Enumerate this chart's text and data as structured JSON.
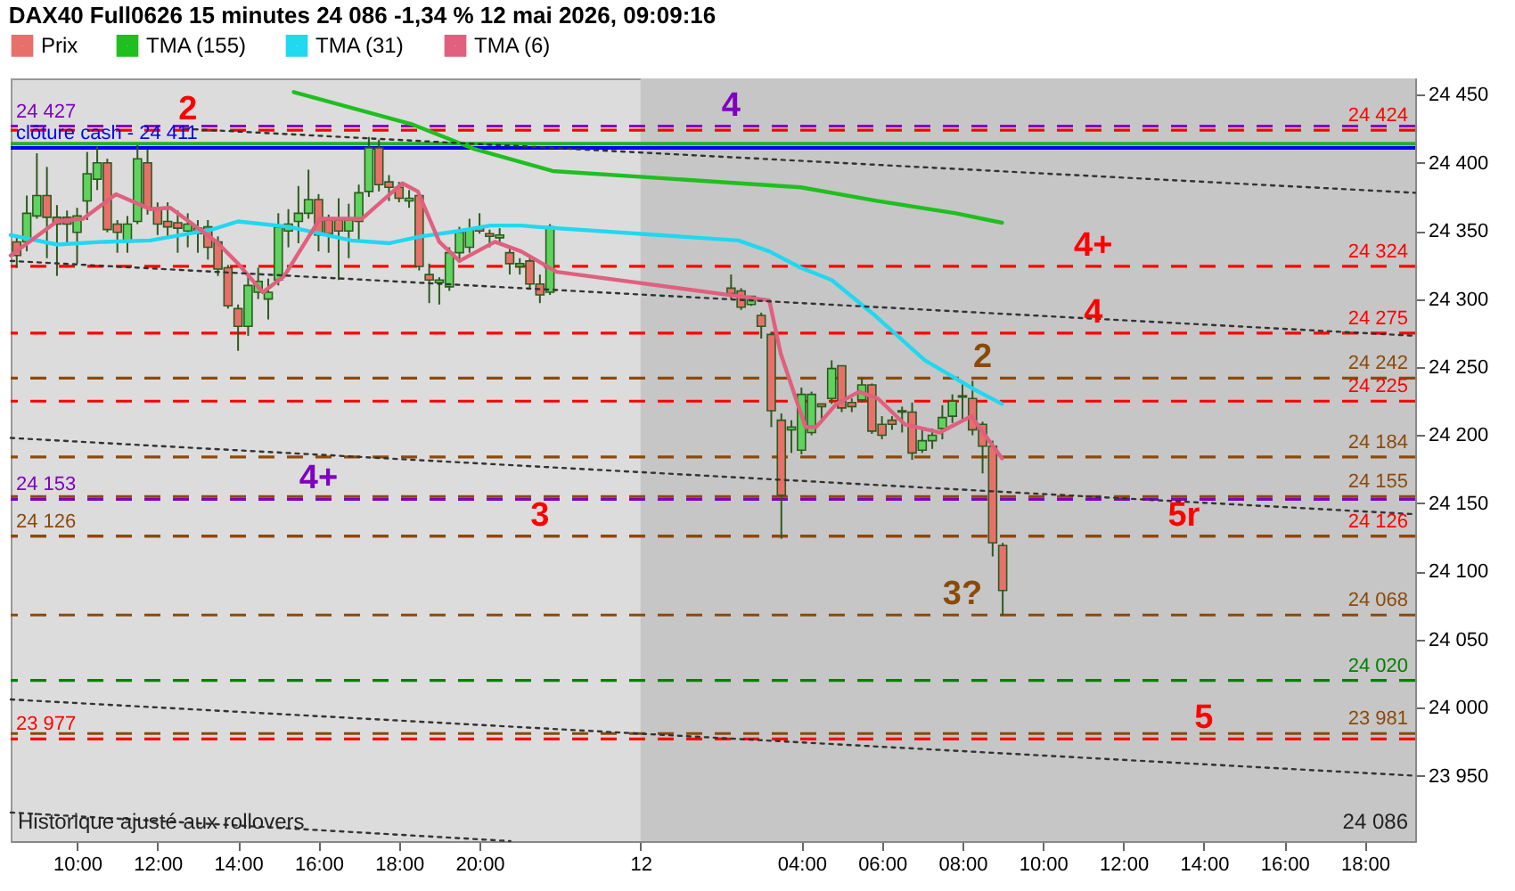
{
  "chart_data": {
    "type": "candlestick",
    "title": "DAX40 Full0626 15 minutes 24 086 -1,34 % 12 mai 2026, 09:09:16",
    "legend": "top left",
    "xlim": [
      "2026-05-11T08:21",
      "2026-05-12T19:15"
    ],
    "ylim": [
      23902,
      24462
    ],
    "xticks": [
      {
        "value": "2026-05-11T10:00",
        "label": "10:00"
      },
      {
        "value": "2026-05-11T12:00",
        "label": "12:00"
      },
      {
        "value": "2026-05-11T14:00",
        "label": "14:00"
      },
      {
        "value": "2026-05-11T16:00",
        "label": "16:00"
      },
      {
        "value": "2026-05-11T18:00",
        "label": "18:00"
      },
      {
        "value": "2026-05-11T20:00",
        "label": "20:00"
      },
      {
        "value": "2026-05-12T00:00",
        "label": "12"
      },
      {
        "value": "2026-05-12T04:00",
        "label": "04:00"
      },
      {
        "value": "2026-05-12T06:00",
        "label": "06:00"
      },
      {
        "value": "2026-05-12T08:00",
        "label": "08:00"
      },
      {
        "value": "2026-05-12T10:00",
        "label": "10:00"
      },
      {
        "value": "2026-05-12T12:00",
        "label": "12:00"
      },
      {
        "value": "2026-05-12T14:00",
        "label": "14:00"
      },
      {
        "value": "2026-05-12T16:00",
        "label": "16:00"
      },
      {
        "value": "2026-05-12T18:00",
        "label": "18:00"
      }
    ],
    "yticks": [
      {
        "value": 23950,
        "label": "23 950"
      },
      {
        "value": 24000,
        "label": "24 000"
      },
      {
        "value": 24050,
        "label": "24 050"
      },
      {
        "value": 24100,
        "label": "24 100"
      },
      {
        "value": 24150,
        "label": "24 150"
      },
      {
        "value": 24200,
        "label": "24 200"
      },
      {
        "value": 24250,
        "label": "24 250"
      },
      {
        "value": 24300,
        "label": "24 300"
      },
      {
        "value": 24350,
        "label": "24 350"
      },
      {
        "value": 24400,
        "label": "24 400"
      },
      {
        "value": 24450,
        "label": "24 450"
      }
    ],
    "series": [
      {
        "name": "Prix",
        "x": [
          "2026-05-11T08:30",
          "2026-05-11T08:45",
          "2026-05-11T09:00",
          "2026-05-11T09:15",
          "2026-05-11T09:30",
          "2026-05-11T09:45",
          "2026-05-11T10:00",
          "2026-05-11T10:15",
          "2026-05-11T10:30",
          "2026-05-11T10:45",
          "2026-05-11T11:00",
          "2026-05-11T11:15",
          "2026-05-11T11:30",
          "2026-05-11T11:45",
          "2026-05-11T12:00",
          "2026-05-11T12:15",
          "2026-05-11T12:30",
          "2026-05-11T12:45",
          "2026-05-11T13:00",
          "2026-05-11T13:15",
          "2026-05-11T13:30",
          "2026-05-11T13:45",
          "2026-05-11T14:00",
          "2026-05-11T14:15",
          "2026-05-11T14:30",
          "2026-05-11T14:45",
          "2026-05-11T15:00",
          "2026-05-11T15:15",
          "2026-05-11T15:30",
          "2026-05-11T15:45",
          "2026-05-11T16:00",
          "2026-05-11T16:15",
          "2026-05-11T16:30",
          "2026-05-11T16:45",
          "2026-05-11T17:00",
          "2026-05-11T17:15",
          "2026-05-11T17:30",
          "2026-05-11T17:45",
          "2026-05-11T18:00",
          "2026-05-11T18:15",
          "2026-05-11T18:30",
          "2026-05-11T18:45",
          "2026-05-11T19:00",
          "2026-05-11T19:15",
          "2026-05-11T19:30",
          "2026-05-11T19:45",
          "2026-05-11T20:00",
          "2026-05-11T20:15",
          "2026-05-11T20:30",
          "2026-05-11T20:45",
          "2026-05-11T21:00",
          "2026-05-11T21:15",
          "2026-05-11T21:30",
          "2026-05-11T21:45",
          "2026-05-12T02:15",
          "2026-05-12T02:30",
          "2026-05-12T02:45",
          "2026-05-12T03:00",
          "2026-05-12T03:15",
          "2026-05-12T03:30",
          "2026-05-12T03:45",
          "2026-05-12T04:00",
          "2026-05-12T04:15",
          "2026-05-12T04:30",
          "2026-05-12T04:45",
          "2026-05-12T05:00",
          "2026-05-12T05:15",
          "2026-05-12T05:30",
          "2026-05-12T05:45",
          "2026-05-12T06:00",
          "2026-05-12T06:15",
          "2026-05-12T06:30",
          "2026-05-12T06:45",
          "2026-05-12T07:00",
          "2026-05-12T07:15",
          "2026-05-12T07:30",
          "2026-05-12T07:45",
          "2026-05-12T08:00",
          "2026-05-12T08:15",
          "2026-05-12T08:30",
          "2026-05-12T08:45",
          "2026-05-12T09:00"
        ],
        "ohlc": [
          [
            24342,
            24346,
            24323,
            24332
          ],
          [
            24342,
            24376,
            24335,
            24363
          ],
          [
            24361,
            24407,
            24359,
            24376
          ],
          [
            24376,
            24397,
            24330,
            24360
          ],
          [
            24360,
            24369,
            24317,
            24355
          ],
          [
            24360,
            24365,
            24340,
            24355
          ],
          [
            24349,
            24367,
            24326,
            24361
          ],
          [
            24372,
            24408,
            24358,
            24392
          ],
          [
            24388,
            24412,
            24380,
            24400
          ],
          [
            24400,
            24403,
            24349,
            24351
          ],
          [
            24355,
            24358,
            24334,
            24349
          ],
          [
            24342,
            24361,
            24334,
            24355
          ],
          [
            24357,
            24413,
            24355,
            24403
          ],
          [
            24400,
            24410,
            24362,
            24367
          ],
          [
            24367,
            24371,
            24347,
            24355
          ],
          [
            24357,
            24371,
            24346,
            24353
          ],
          [
            24356,
            24365,
            24334,
            24352
          ],
          [
            24350,
            24363,
            24338,
            24355
          ],
          [
            24352,
            24358,
            24334,
            24348
          ],
          [
            24353,
            24358,
            24329,
            24338
          ],
          [
            24342,
            24346,
            24317,
            24322
          ],
          [
            24323,
            24325,
            24293,
            24295
          ],
          [
            24293,
            24296,
            24262,
            24280
          ],
          [
            24280,
            24318,
            24273,
            24310
          ],
          [
            24305,
            24323,
            24300,
            24313
          ],
          [
            24300,
            24315,
            24285,
            24305
          ],
          [
            24314,
            24363,
            24310,
            24353
          ],
          [
            24350,
            24366,
            24338,
            24355
          ],
          [
            24357,
            24383,
            24341,
            24363
          ],
          [
            24363,
            24395,
            24359,
            24373
          ],
          [
            24373,
            24377,
            24335,
            24347
          ],
          [
            24358,
            24362,
            24334,
            24348
          ],
          [
            24358,
            24374,
            24314,
            24350
          ],
          [
            24350,
            24370,
            24330,
            24358
          ],
          [
            24357,
            24384,
            24343,
            24378
          ],
          [
            24379,
            24419,
            24375,
            24411
          ],
          [
            24411,
            24417,
            24379,
            24384
          ],
          [
            24386,
            24391,
            24372,
            24382
          ],
          [
            24382,
            24386,
            24371,
            24374
          ],
          [
            24372,
            24380,
            24367,
            24374
          ],
          [
            24376,
            24378,
            24321,
            24324
          ],
          [
            24318,
            24326,
            24297,
            24314
          ],
          [
            24312,
            24316,
            24296,
            24314
          ],
          [
            24309,
            24338,
            24306,
            24334
          ],
          [
            24334,
            24353,
            24327,
            24349
          ],
          [
            24338,
            24359,
            24334,
            24351
          ],
          [
            24352,
            24363,
            24348,
            24350
          ],
          [
            24348,
            24351,
            24338,
            24346
          ],
          [
            24345,
            24352,
            24340,
            24347
          ],
          [
            24334,
            24338,
            24318,
            24326
          ],
          [
            24324,
            24330,
            24318,
            24326
          ],
          [
            24328,
            24330,
            24307,
            24311
          ],
          [
            24311,
            24318,
            24297,
            24303
          ],
          [
            24305,
            24355,
            24303,
            24353
          ],
          [
            24308,
            24318,
            24300,
            24304
          ],
          [
            24306,
            24308,
            24292,
            24294
          ],
          [
            24296,
            24302,
            24295,
            24302
          ],
          [
            24288,
            24290,
            24271,
            24280
          ],
          [
            24274,
            24276,
            24206,
            24218
          ],
          [
            24211,
            24216,
            24124,
            24156
          ],
          [
            24204,
            24211,
            24187,
            24206
          ],
          [
            24189,
            24235,
            24186,
            24230
          ],
          [
            24202,
            24232,
            24200,
            24230
          ],
          [
            24223,
            24223,
            24212,
            24221
          ],
          [
            24227,
            24255,
            24223,
            24249
          ],
          [
            24251,
            24251,
            24217,
            24220
          ],
          [
            24224,
            24227,
            24217,
            24221
          ],
          [
            24226,
            24242,
            24224,
            24237
          ],
          [
            24237,
            24238,
            24201,
            24203
          ],
          [
            24208,
            24214,
            24197,
            24200
          ],
          [
            24211,
            24214,
            24204,
            24208
          ],
          [
            24218,
            24221,
            24202,
            24217
          ],
          [
            24217,
            24224,
            24182,
            24187
          ],
          [
            24189,
            24206,
            24187,
            24196
          ],
          [
            24196,
            24205,
            24190,
            24200
          ],
          [
            24205,
            24222,
            24197,
            24213
          ],
          [
            24214,
            24230,
            24209,
            24225
          ],
          [
            24228,
            24240,
            24212,
            24229
          ],
          [
            24227,
            24240,
            24200,
            24204
          ],
          [
            24208,
            24210,
            24172,
            24192
          ],
          [
            24192,
            24196,
            24111,
            24121
          ],
          [
            24119,
            24121,
            24068,
            24086
          ]
        ],
        "colors": [
          "#e8706a",
          "#5ed35e",
          "#5ed35e",
          "#e8706a",
          "#e8706a",
          "#e8706a",
          "#5ed35e",
          "#5ed35e",
          "#5ed35e",
          "#e8706a",
          "#e8706a",
          "#5ed35e",
          "#5ed35e",
          "#e8706a",
          "#e8706a",
          "#e8706a",
          "#e8706a",
          "#5ed35e",
          "#e8706a",
          "#e8706a",
          "#e8706a",
          "#e8706a",
          "#e8706a",
          "#5ed35e",
          "#5ed35e",
          "#5ed35e",
          "#5ed35e",
          "#5ed35e",
          "#5ed35e",
          "#5ed35e",
          "#e8706a",
          "#e8706a",
          "#e8706a",
          "#5ed35e",
          "#5ed35e",
          "#5ed35e",
          "#e8706a",
          "#e8706a",
          "#e8706a",
          "#5ed35e",
          "#e8706a",
          "#e8706a",
          "#5ed35e",
          "#5ed35e",
          "#5ed35e",
          "#5ed35e",
          "#e8706a",
          "#e8706a",
          "#5ed35e",
          "#e8706a",
          "#5ed35e",
          "#e8706a",
          "#e8706a",
          "#5ed35e",
          "#e8706a",
          "#e8706a",
          "#5ed35e",
          "#e8706a",
          "#e8706a",
          "#e8706a",
          "#5ed35e",
          "#5ed35e",
          "#5ed35e",
          "#e8706a",
          "#5ed35e",
          "#e8706a",
          "#e8706a",
          "#5ed35e",
          "#e8706a",
          "#e8706a",
          "#e8706a",
          "#e8706a",
          "#e8706a",
          "#5ed35e",
          "#5ed35e",
          "#5ed35e",
          "#5ed35e",
          "#5ed35e",
          "#e8706a",
          "#e8706a",
          "#e8706a",
          "#e8706a"
        ]
      },
      {
        "name": "TMA (155)",
        "type": "line",
        "color": "#1fbf1f",
        "x": [
          "2026-05-11T15:23",
          "2026-05-11T18:21",
          "2026-05-11T19:53",
          "2026-05-11T21:49",
          "2026-05-12T03:59",
          "2026-05-12T05:54",
          "2026-05-12T07:50",
          "2026-05-12T08:59"
        ],
        "values": [
          24452,
          24428,
          24410,
          24394,
          24382,
          24372,
          24363,
          24356
        ]
      },
      {
        "name": "TMA (31)",
        "type": "line",
        "color": "#20d8f0",
        "x": [
          "2026-05-11T08:21",
          "2026-05-11T09:30",
          "2026-05-11T10:39",
          "2026-05-11T11:49",
          "2026-05-11T13:21",
          "2026-05-11T14:00",
          "2026-05-11T15:16",
          "2026-05-11T16:49",
          "2026-05-11T17:46",
          "2026-05-11T18:32",
          "2026-05-11T19:30",
          "2026-05-11T20:16",
          "2026-05-11T21:02",
          "2026-05-11T21:25",
          "2026-05-12T02:26",
          "2026-05-12T03:12",
          "2026-05-12T03:59",
          "2026-05-12T04:45",
          "2026-05-12T05:47",
          "2026-05-12T07:04",
          "2026-05-12T08:20",
          "2026-05-12T08:59"
        ],
        "values": [
          24347,
          24340,
          24342,
          24343,
          24351,
          24357,
          24353,
          24343,
          24341,
          24346,
          24350,
          24354,
          24354,
          24353,
          24343,
          24335,
          24323,
          24314,
          24289,
          24255,
          24233,
          24223
        ]
      },
      {
        "name": "TMA (6)",
        "type": "line",
        "color": "#e0607e",
        "x": [
          "2026-05-11T08:21",
          "2026-05-11T09:30",
          "2026-05-11T10:09",
          "2026-05-11T10:58",
          "2026-05-11T11:49",
          "2026-05-11T12:19",
          "2026-05-11T13:28",
          "2026-05-11T14:00",
          "2026-05-11T14:37",
          "2026-05-11T15:09",
          "2026-05-11T16:02",
          "2026-05-11T17:05",
          "2026-05-11T18:05",
          "2026-05-11T18:28",
          "2026-05-11T19:00",
          "2026-05-11T19:30",
          "2026-05-11T20:23",
          "2026-05-11T21:02",
          "2026-05-11T21:55",
          "2026-05-12T03:12",
          "2026-05-12T03:29",
          "2026-05-12T04:06",
          "2026-05-12T04:22",
          "2026-05-12T04:52",
          "2026-05-12T05:26",
          "2026-05-12T05:54",
          "2026-05-12T06:34",
          "2026-05-12T07:26",
          "2026-05-12T08:13",
          "2026-05-12T08:59"
        ],
        "values": [
          24332,
          24357,
          24359,
          24377,
          24366,
          24367,
          24342,
          24326,
          24305,
          24317,
          24359,
          24359,
          24385,
          24379,
          24342,
          24328,
          24342,
          24335,
          24320,
          24299,
          24260,
          24206,
          24206,
          24223,
          24232,
          24227,
          24208,
          24202,
          24214,
          24183
        ]
      },
      {
        "type": "line",
        "color": "#333333",
        "line_style": "dotted",
        "x": [
          "2026-05-11T12:41",
          "2026-05-12T19:15"
        ],
        "values": [
          24425,
          24378
        ]
      },
      {
        "type": "line",
        "color": "#333333",
        "line_style": "dotted",
        "x": [
          "2026-05-11T08:21",
          "2026-05-12T19:15"
        ],
        "values": [
          24328,
          24273
        ]
      },
      {
        "type": "line",
        "color": "#333333",
        "line_style": "dotted",
        "x": [
          "2026-05-11T08:21",
          "2026-05-12T19:15"
        ],
        "values": [
          24198,
          24142
        ]
      },
      {
        "type": "line",
        "color": "#333333",
        "line_style": "dotted",
        "x": [
          "2026-05-11T08:21",
          "2026-05-12T19:15"
        ],
        "values": [
          24006,
          23950
        ]
      },
      {
        "type": "line",
        "color": "#333333",
        "line_style": "dotted",
        "x": [
          "2026-05-11T08:21",
          "2026-05-11T20:46"
        ],
        "values": [
          23923,
          23902
        ]
      }
    ],
    "ref_lines": [
      {
        "axis": "y",
        "value": 24424,
        "label": "24 424",
        "color": "#ff0000",
        "line_style": "dashed"
      },
      {
        "axis": "y",
        "value": 24427,
        "label": "24 427",
        "color": "#8000c0",
        "line_style": "dashed"
      },
      {
        "axis": "y",
        "value": 24414,
        "color": "#22b022",
        "line_style": "solid"
      },
      {
        "axis": "y",
        "value": 24411,
        "label": "clôture cash -  24 411",
        "color": "#0000ff",
        "line_style": "solid"
      },
      {
        "axis": "y",
        "value": 24324,
        "label": "24 324",
        "color": "#ff0000",
        "line_style": "dashed"
      },
      {
        "axis": "y",
        "value": 24275,
        "label": "24 275",
        "color": "#ff0000",
        "line_style": "dashed"
      },
      {
        "axis": "y",
        "value": 24242,
        "label": "24 242",
        "color": "#8b4a0a",
        "line_style": "dashed"
      },
      {
        "axis": "y",
        "value": 24225,
        "label": "24 225",
        "color": "#ff0000",
        "line_style": "dashed"
      },
      {
        "axis": "y",
        "value": 24184,
        "label": "24 184",
        "color": "#8b4a0a",
        "line_style": "dashed"
      },
      {
        "axis": "y",
        "value": 24155,
        "label": "24 155",
        "color": "#8b4a0a",
        "line_style": "dashed"
      },
      {
        "axis": "y",
        "value": 24153,
        "label": "24 153",
        "color": "#8000c0",
        "line_style": "dashed"
      },
      {
        "axis": "y",
        "value": 24126,
        "label": "24 126",
        "color": "#ff0000",
        "line_style": "dashed"
      },
      {
        "axis": "y",
        "value": 24126,
        "label": "24 126",
        "color": "#8b4a0a",
        "line_style": "dashed"
      },
      {
        "axis": "y",
        "value": 24068,
        "label": "24 068",
        "color": "#8b4a0a",
        "line_style": "dashed"
      },
      {
        "axis": "y",
        "value": 24020,
        "label": "24 020",
        "color": "#008000",
        "line_style": "dashed"
      },
      {
        "axis": "y",
        "value": 23981,
        "label": "23 981",
        "color": "#8b4a0a",
        "line_style": "dashed"
      },
      {
        "axis": "y",
        "value": 23977,
        "label": "23 977",
        "color": "#ff0000",
        "line_style": "dashed"
      }
    ],
    "bands": [
      {
        "axis": "x",
        "from": "2026-05-12T00:00",
        "to": "2026-05-12T19:15",
        "color": "#c6c6c6"
      }
    ],
    "annotations": [
      {
        "text": "2",
        "x": "2026-05-11T12:45",
        "y": 24424
      },
      {
        "text": "4",
        "x": "2026-05-12T02:15",
        "y": 24427
      },
      {
        "text": "4+",
        "x": "2026-05-12T11:15",
        "y": 24324
      },
      {
        "text": "4",
        "x": "2026-05-12T11:15",
        "y": 24275
      },
      {
        "text": "2",
        "x": "2026-05-12T08:30",
        "y": 24242
      },
      {
        "text": "4+",
        "x": "2026-05-11T16:00",
        "y": 24153
      },
      {
        "text": "3",
        "x": "2026-05-11T21:30",
        "y": 24126
      },
      {
        "text": "5r",
        "x": "2026-05-12T13:30",
        "y": 24126
      },
      {
        "text": "3?",
        "x": "2026-05-12T08:00",
        "y": 24068
      },
      {
        "text": "5",
        "x": "2026-05-12T14:00",
        "y": 23977
      },
      "Historique ajusté aux rollovers",
      "24 086"
    ]
  }
}
